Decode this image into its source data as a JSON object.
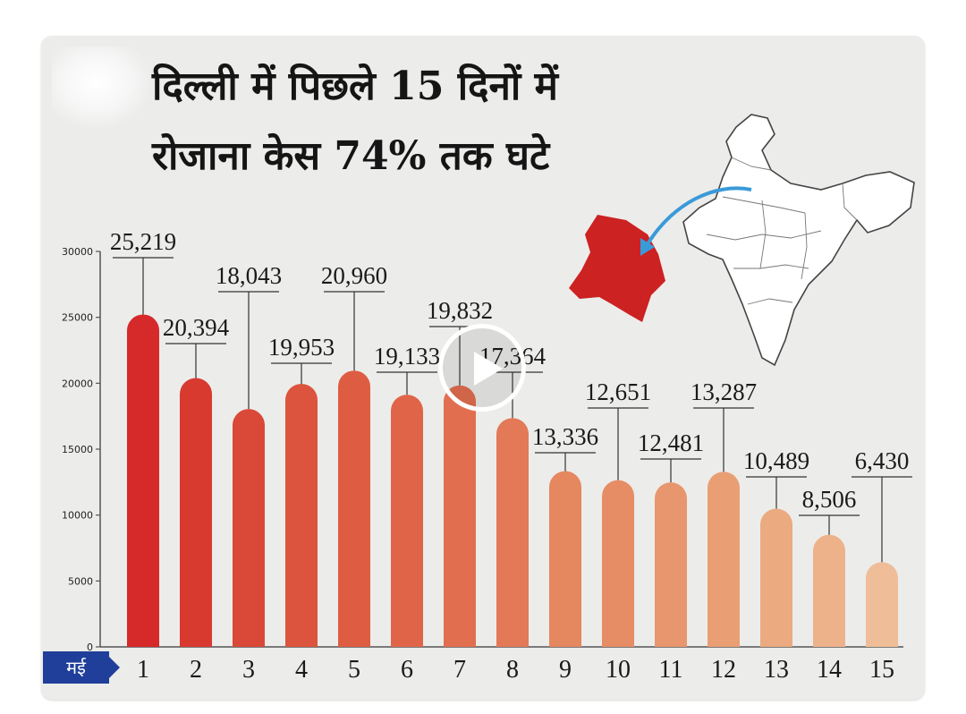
{
  "title_lines": [
    "दिल्ली में पिछले 15 दिनों में",
    "रोजाना केस 74% तक घटे"
  ],
  "month_label": "मई",
  "chart_data": {
    "type": "bar",
    "categories": [
      "1",
      "2",
      "3",
      "4",
      "5",
      "6",
      "7",
      "8",
      "9",
      "10",
      "11",
      "12",
      "13",
      "14",
      "15"
    ],
    "values": [
      25219,
      20394,
      18043,
      19953,
      20960,
      19133,
      19832,
      17364,
      13336,
      12651,
      12481,
      13287,
      10489,
      8506,
      6430
    ],
    "value_labels": [
      "25,219",
      "20,394",
      "18,043",
      "19,953",
      "20,960",
      "19,133",
      "19,832",
      "17,364",
      "13,336",
      "12,651",
      "12,481",
      "13,287",
      "10,489",
      "8,506",
      "6,430"
    ],
    "y_ticks": [
      0,
      5000,
      10000,
      15000,
      20000,
      25000,
      30000
    ],
    "ylim": [
      0,
      30000
    ],
    "colors": [
      "#d62a2a",
      "#d83a30",
      "#da4838",
      "#dc543d",
      "#de5c42",
      "#e06548",
      "#e26e50",
      "#e37957",
      "#e5875f",
      "#e68d66",
      "#e8966d",
      "#e99e74",
      "#ebaa80",
      "#edb28a",
      "#efbd98"
    ]
  },
  "colors": {
    "card_bg": "#ececea",
    "month_tag": "#1f3f9a",
    "delhi_map": "#cc2222",
    "arrow": "#3a9ad9"
  },
  "icons": [
    "play-icon",
    "india-map-icon",
    "delhi-map-icon",
    "blurred-logo-icon"
  ]
}
